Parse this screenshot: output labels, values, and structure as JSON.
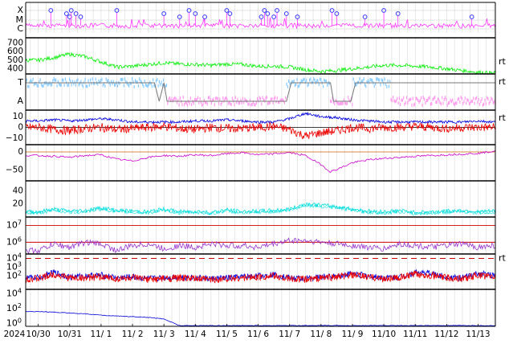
{
  "chart_data": [
    {
      "type": "scatter",
      "name": "xray-class",
      "y_labels": [
        "X",
        "M",
        "C"
      ],
      "series_color": "#ff33ff",
      "marker_color": "#3333ff",
      "flare_markers_day": [
        0.4,
        0.9,
        1.0,
        1.05,
        1.2,
        1.35,
        2.5,
        4.0,
        4.5,
        4.8,
        5.0,
        5.3,
        6.0,
        6.1,
        7.1,
        7.2,
        7.3,
        7.5,
        7.6,
        7.9,
        8.25,
        9.35,
        9.5,
        10.4,
        11.0,
        11.45,
        13.8
      ],
      "baseline_level": 0.2
    },
    {
      "type": "line",
      "name": "solar-wind-speed",
      "ylim": [
        340,
        760
      ],
      "tick_labels": [
        "700",
        "600",
        "500",
        "400"
      ],
      "tick_values": [
        700,
        600,
        500,
        400
      ],
      "color": "#00ee00",
      "right_label": "rt",
      "x": [
        0,
        0.5,
        1.0,
        1.5,
        2.0,
        2.5,
        3.0,
        3.5,
        4.0,
        4.5,
        5.0,
        5.5,
        6.0,
        6.5,
        7.0,
        7.5,
        8.0,
        8.5,
        9.0,
        9.5,
        10.0,
        10.5,
        11.0,
        11.5,
        12.0,
        12.5,
        13.0,
        13.5,
        14.0,
        14.5
      ],
      "y": [
        500,
        530,
        570,
        540,
        480,
        420,
        430,
        450,
        470,
        455,
        450,
        440,
        455,
        450,
        430,
        430,
        420,
        390,
        370,
        380,
        400,
        420,
        440,
        440,
        430,
        420,
        400,
        380,
        360,
        350
      ]
    },
    {
      "type": "line",
      "name": "imf-sector",
      "y_labels": [
        "T",
        "A"
      ],
      "colors": [
        "#88ccff",
        "#ff99ee",
        "#777777"
      ],
      "right_label": "rt"
    },
    {
      "type": "line",
      "name": "imf-bz-bt",
      "ylim": [
        -16,
        16
      ],
      "tick_labels": [
        "10",
        "0",
        "−10"
      ],
      "tick_values": [
        10,
        0,
        -10
      ],
      "colors": [
        "#0000dd",
        "#ee0000"
      ],
      "right_label": "rt",
      "x": [
        0,
        0.5,
        1.0,
        1.5,
        2.0,
        2.5,
        3.0,
        3.5,
        4.0,
        4.5,
        5.0,
        5.5,
        6.0,
        6.5,
        7.0,
        7.5,
        8.0,
        8.5,
        9.0,
        9.5,
        10.0,
        10.5,
        11.0,
        11.5,
        12.0,
        12.5,
        13.0,
        13.5,
        14.0,
        14.5
      ],
      "bt": [
        6,
        7,
        6,
        7,
        8,
        7,
        5,
        5,
        5,
        5,
        6,
        6,
        7,
        6,
        5,
        5,
        8,
        13,
        10,
        9,
        7,
        6,
        5,
        5,
        5,
        5,
        5,
        5,
        6,
        5
      ],
      "bz": [
        0,
        -2,
        -3,
        -1,
        0,
        -2,
        -1,
        0,
        1,
        -1,
        -2,
        0,
        -1,
        -1,
        0,
        1,
        -2,
        -8,
        -5,
        -3,
        0,
        -1,
        0,
        0,
        1,
        0,
        -1,
        0,
        0,
        0
      ]
    },
    {
      "type": "line",
      "name": "dst-index",
      "ylim": [
        -80,
        20
      ],
      "tick_labels": [
        "0",
        "−50"
      ],
      "tick_values": [
        0,
        -50
      ],
      "color": "#cc00cc",
      "x": [
        0,
        0.5,
        1.0,
        1.5,
        2.0,
        2.5,
        3.0,
        3.5,
        4.0,
        4.5,
        5.0,
        5.5,
        6.0,
        6.5,
        7.0,
        7.5,
        8.0,
        8.5,
        9.0,
        9.3,
        9.6,
        10.0,
        10.5,
        11.0,
        11.5,
        12.0,
        12.5,
        13.0,
        13.5,
        14.0,
        14.5
      ],
      "y": [
        -10,
        -12,
        -15,
        -10,
        -8,
        -20,
        -25,
        -15,
        -10,
        -12,
        -8,
        -10,
        -5,
        -2,
        -8,
        -5,
        -2,
        -10,
        -35,
        -55,
        -45,
        -30,
        -22,
        -18,
        -15,
        -12,
        -10,
        -8,
        -6,
        -4,
        2
      ]
    },
    {
      "type": "line",
      "name": "kp-like",
      "ylim": [
        0,
        55
      ],
      "tick_labels": [
        "40",
        "20"
      ],
      "tick_values": [
        40,
        20
      ],
      "color": "#00dddd",
      "x": [
        0,
        0.5,
        1.0,
        1.5,
        2.0,
        2.5,
        3.0,
        3.5,
        4.0,
        4.5,
        5.0,
        5.5,
        6.0,
        6.5,
        7.0,
        7.5,
        8.0,
        8.5,
        9.0,
        9.5,
        10.0,
        10.5,
        11.0,
        11.5,
        12.0,
        12.5,
        13.0,
        13.5,
        14.0,
        14.5
      ],
      "y": [
        8,
        12,
        9,
        10,
        14,
        10,
        9,
        8,
        12,
        8,
        9,
        7,
        11,
        8,
        9,
        10,
        12,
        20,
        18,
        16,
        12,
        9,
        8,
        10,
        7,
        8,
        9,
        10,
        8,
        9
      ]
    },
    {
      "type": "line",
      "name": "electron-flux",
      "log": true,
      "ylim_log": [
        5.3,
        7.5
      ],
      "tick_labels": [
        {
          "base": "10",
          "exp": "7",
          "value": 7
        },
        {
          "base": "10",
          "exp": "6",
          "value": 6
        }
      ],
      "color": "#9933cc",
      "thresholds": [
        7,
        6
      ],
      "threshold_color": "#cc0000",
      "x": [
        0,
        0.5,
        1.0,
        1.5,
        2.0,
        2.5,
        3.0,
        3.5,
        4.0,
        4.5,
        5.0,
        5.5,
        6.0,
        6.5,
        7.0,
        7.5,
        8.0,
        8.5,
        9.0,
        9.5,
        10.0,
        10.5,
        11.0,
        11.5,
        12.0,
        12.5,
        13.0,
        13.5,
        14.0,
        14.5
      ],
      "y": [
        5.5,
        5.9,
        5.7,
        6.0,
        5.9,
        5.5,
        5.8,
        5.9,
        5.6,
        5.8,
        5.7,
        5.9,
        5.8,
        5.8,
        5.7,
        5.9,
        6.1,
        6.1,
        6.0,
        5.9,
        5.8,
        5.7,
        5.6,
        5.9,
        5.8,
        5.7,
        5.8,
        5.9,
        5.7,
        5.8
      ]
    },
    {
      "type": "line",
      "name": "proton-flux",
      "log": true,
      "ylim_log": [
        0.5,
        4.5
      ],
      "tick_labels": [
        {
          "base": "10",
          "exp": "4",
          "value": 4
        },
        {
          "base": "10",
          "exp": "3",
          "value": 3
        },
        {
          "base": "10",
          "exp": "2",
          "value": 2
        }
      ],
      "colors": [
        "#0000dd",
        "#ee0000"
      ],
      "right_label": "rt",
      "threshold": 4,
      "threshold_color": "#cc0000",
      "x": [
        0,
        0.5,
        1.0,
        1.5,
        2.0,
        2.5,
        3.0,
        3.5,
        4.0,
        4.5,
        5.0,
        5.5,
        6.0,
        6.5,
        7.0,
        7.5,
        8.0,
        8.5,
        9.0,
        9.5,
        10.0,
        10.5,
        11.0,
        11.5,
        12.0,
        12.5,
        13.0,
        13.5,
        14.0,
        14.5
      ],
      "y_blue": [
        1.8,
        2.4,
        1.9,
        2.0,
        2.1,
        1.8,
        1.9,
        1.7,
        1.8,
        1.9,
        1.8,
        1.7,
        1.8,
        1.9,
        2.0,
        2.2,
        1.8,
        1.7,
        1.9,
        2.0,
        2.3,
        2.0,
        1.8,
        1.9,
        2.4,
        2.3,
        1.9,
        1.8,
        2.3,
        2.1
      ],
      "y_red": [
        1.7,
        2.2,
        1.8,
        1.8,
        1.9,
        1.7,
        1.8,
        1.6,
        1.7,
        1.8,
        1.7,
        1.6,
        1.7,
        1.8,
        1.9,
        2.0,
        1.7,
        1.6,
        1.8,
        1.9,
        2.1,
        1.9,
        1.7,
        1.8,
        2.2,
        2.1,
        1.8,
        1.7,
        2.1,
        1.9
      ]
    },
    {
      "type": "line",
      "name": "high-energy-flux",
      "log": true,
      "ylim_log": [
        -0.4,
        4.6
      ],
      "tick_labels": [
        {
          "base": "10",
          "exp": "4",
          "value": 4
        },
        {
          "base": "10",
          "exp": "2",
          "value": 2
        },
        {
          "base": "10",
          "exp": "0",
          "value": 0
        }
      ],
      "color": "#0000dd",
      "x": [
        0,
        0.5,
        1.0,
        1.5,
        2.0,
        2.5,
        3.0,
        3.5,
        4.0,
        4.5,
        5.0,
        6.0,
        7.0,
        8.0,
        9.0,
        10.0,
        11.0,
        12.0,
        13.0,
        14.0,
        14.5
      ],
      "y": [
        1.6,
        1.5,
        1.4,
        1.3,
        1.1,
        1.0,
        0.9,
        0.8,
        0.6,
        -0.3,
        -0.3,
        -0.3,
        -0.3,
        -0.3,
        -0.3,
        -0.3,
        -0.3,
        -0.3,
        -0.3,
        -0.3,
        -0.3
      ]
    }
  ],
  "x_axis": {
    "year_label": "2024",
    "dates": [
      "10/30",
      "10/31",
      "11/ 1",
      "11/ 2",
      "11/ 3",
      "11/ 4",
      "11/ 5",
      "11/ 6",
      "11/ 7",
      "11/ 8",
      "11/ 9",
      "11/10",
      "11/11",
      "11/12",
      "11/13"
    ],
    "date_values": [
      0,
      1,
      2,
      3,
      4,
      5,
      6,
      7,
      8,
      9,
      10,
      11,
      12,
      13,
      14
    ],
    "xlim": [
      -0.4,
      14.55
    ]
  }
}
